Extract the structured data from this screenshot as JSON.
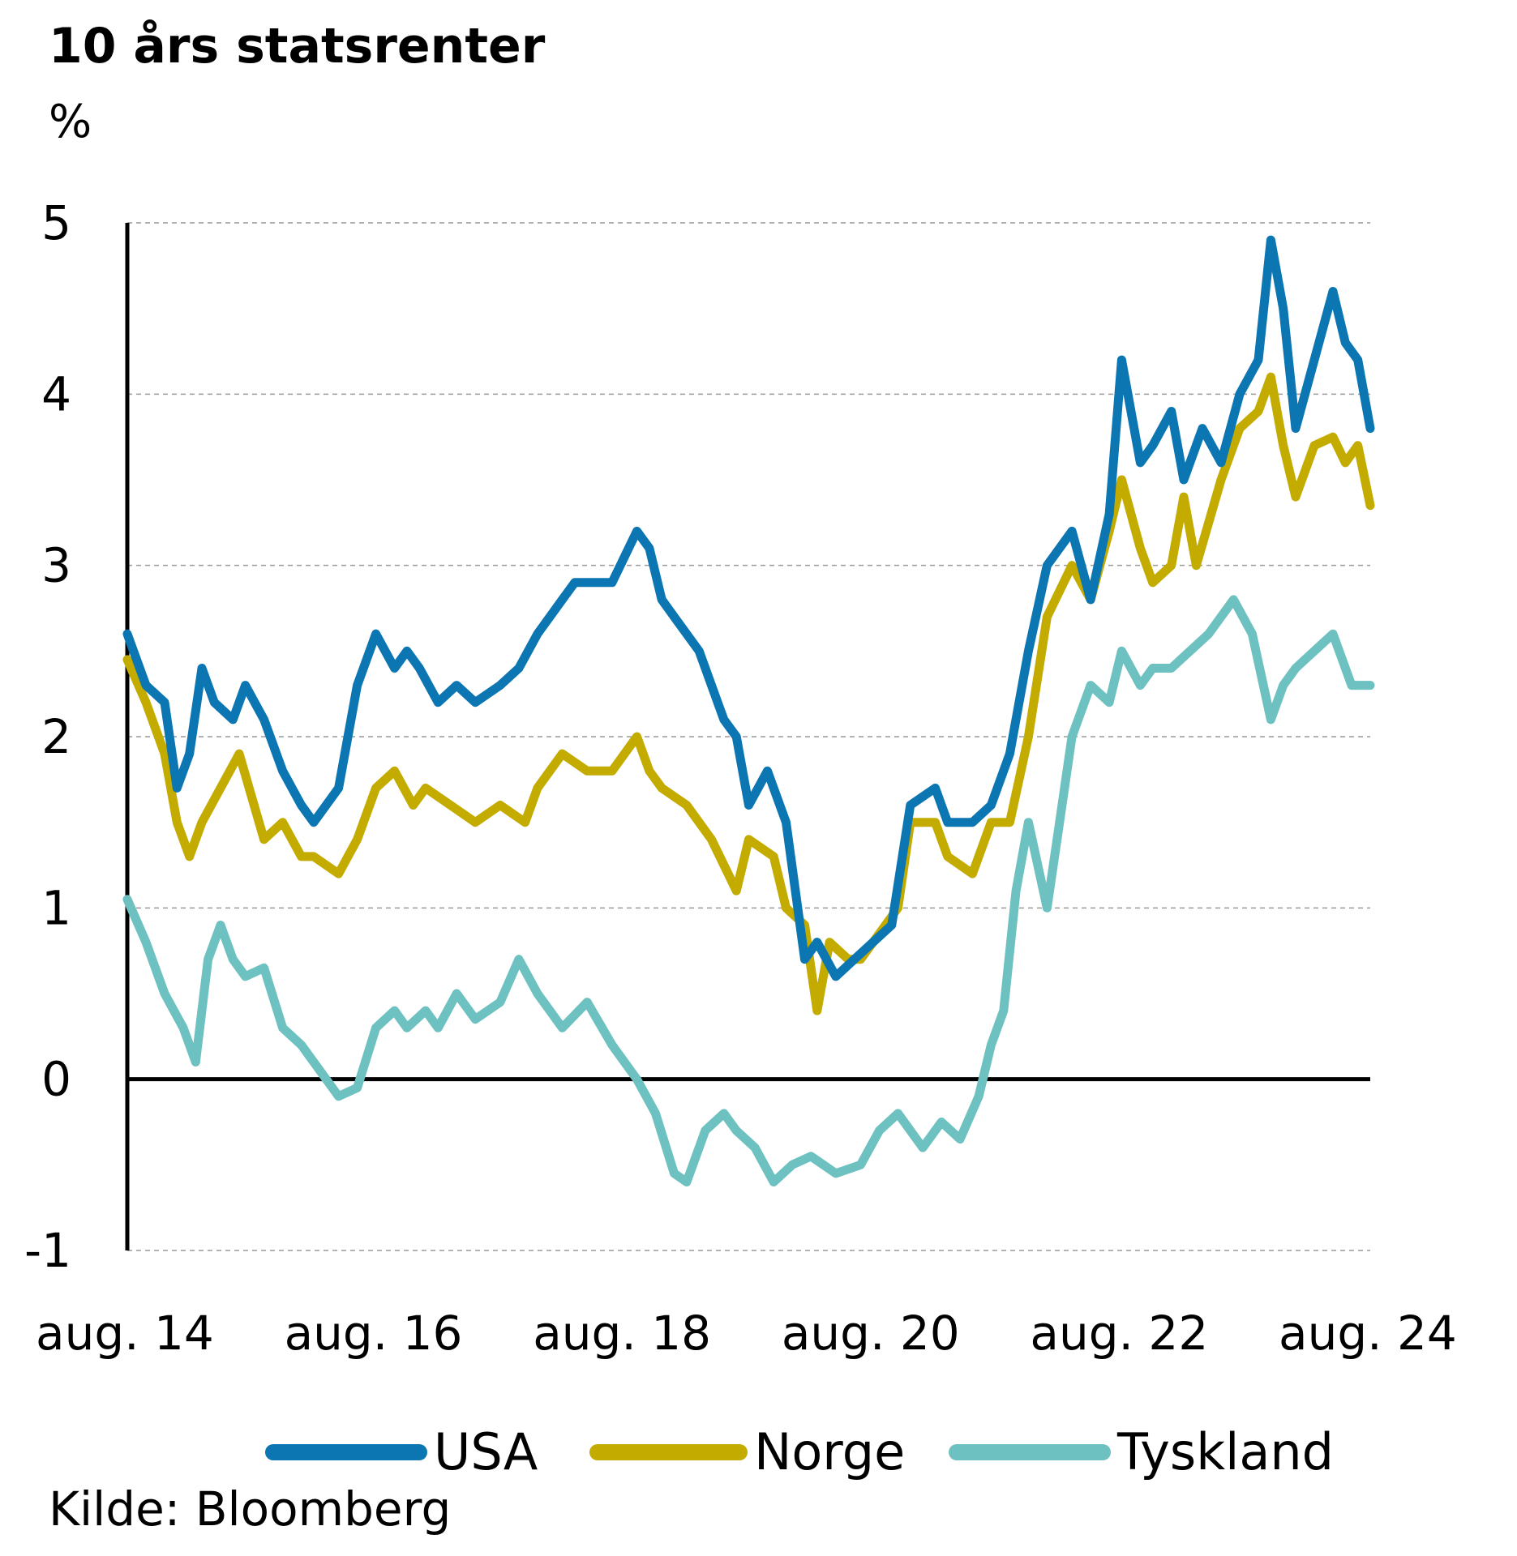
{
  "chart_data": {
    "type": "line",
    "title": "10 års statsrenter",
    "unit": "%",
    "source": "Kilde: Bloomberg",
    "x_tick_labels": [
      "aug. 14",
      "aug. 16",
      "aug. 18",
      "aug. 20",
      "aug. 22",
      "aug. 24"
    ],
    "x_tick_years": [
      2014.58,
      2016.58,
      2018.58,
      2020.58,
      2022.58,
      2024.58
    ],
    "xlim": [
      2014.6,
      2024.6
    ],
    "ylim": [
      -1,
      5
    ],
    "y_ticks": [
      -1,
      0,
      1,
      2,
      3,
      4,
      5
    ],
    "grid": true,
    "legend_position": "bottom",
    "series": [
      {
        "name": "USA",
        "color": "#0c76b2",
        "x": [
          2014.6,
          2014.75,
          2014.9,
          2015.0,
          2015.1,
          2015.2,
          2015.3,
          2015.45,
          2015.55,
          2015.7,
          2015.85,
          2016.0,
          2016.1,
          2016.3,
          2016.45,
          2016.6,
          2016.75,
          2016.85,
          2016.95,
          2017.1,
          2017.25,
          2017.4,
          2017.6,
          2017.75,
          2017.9,
          2018.1,
          2018.2,
          2018.35,
          2018.5,
          2018.7,
          2018.8,
          2018.9,
          2019.0,
          2019.2,
          2019.4,
          2019.5,
          2019.6,
          2019.75,
          2019.9,
          2020.05,
          2020.15,
          2020.3,
          2020.45,
          2020.6,
          2020.75,
          2020.9,
          2021.1,
          2021.2,
          2021.4,
          2021.55,
          2021.7,
          2021.85,
          2022.0,
          2022.2,
          2022.35,
          2022.5,
          2022.6,
          2022.75,
          2022.85,
          2023.0,
          2023.1,
          2023.25,
          2023.4,
          2023.55,
          2023.7,
          2023.8,
          2023.9,
          2024.0,
          2024.15,
          2024.3,
          2024.4,
          2024.5,
          2024.6
        ],
        "y": [
          2.6,
          2.3,
          2.2,
          1.7,
          1.9,
          2.4,
          2.2,
          2.1,
          2.3,
          2.1,
          1.8,
          1.6,
          1.5,
          1.7,
          2.3,
          2.6,
          2.4,
          2.5,
          2.4,
          2.2,
          2.3,
          2.2,
          2.3,
          2.4,
          2.6,
          2.8,
          2.9,
          2.9,
          2.9,
          3.2,
          3.1,
          2.8,
          2.7,
          2.5,
          2.1,
          2.0,
          1.6,
          1.8,
          1.5,
          0.7,
          0.8,
          0.6,
          0.7,
          0.8,
          0.9,
          1.6,
          1.7,
          1.5,
          1.5,
          1.6,
          1.9,
          2.5,
          3.0,
          3.2,
          2.8,
          3.3,
          4.2,
          3.6,
          3.7,
          3.9,
          3.5,
          3.8,
          3.6,
          4.0,
          4.2,
          4.9,
          4.5,
          3.8,
          4.2,
          4.6,
          4.3,
          4.2,
          3.8
        ]
      },
      {
        "name": "Norge",
        "color": "#c3ab00",
        "x": [
          2014.6,
          2014.75,
          2014.9,
          2015.0,
          2015.1,
          2015.2,
          2015.35,
          2015.5,
          2015.7,
          2015.85,
          2016.0,
          2016.1,
          2016.3,
          2016.45,
          2016.6,
          2016.75,
          2016.9,
          2017.0,
          2017.2,
          2017.4,
          2017.6,
          2017.8,
          2017.9,
          2018.1,
          2018.3,
          2018.5,
          2018.7,
          2018.8,
          2018.9,
          2019.1,
          2019.3,
          2019.5,
          2019.6,
          2019.8,
          2019.9,
          2020.05,
          2020.15,
          2020.25,
          2020.4,
          2020.5,
          2020.6,
          2020.7,
          2020.8,
          2020.9,
          2021.1,
          2021.2,
          2021.4,
          2021.55,
          2021.7,
          2021.85,
          2022.0,
          2022.2,
          2022.35,
          2022.5,
          2022.6,
          2022.75,
          2022.85,
          2023.0,
          2023.1,
          2023.2,
          2023.4,
          2023.55,
          2023.7,
          2023.8,
          2023.9,
          2024.0,
          2024.15,
          2024.3,
          2024.4,
          2024.5,
          2024.6
        ],
        "y": [
          2.45,
          2.2,
          1.9,
          1.5,
          1.3,
          1.5,
          1.7,
          1.9,
          1.4,
          1.5,
          1.3,
          1.3,
          1.2,
          1.4,
          1.7,
          1.8,
          1.6,
          1.7,
          1.6,
          1.5,
          1.6,
          1.5,
          1.7,
          1.9,
          1.8,
          1.8,
          2.0,
          1.8,
          1.7,
          1.6,
          1.4,
          1.1,
          1.4,
          1.3,
          1.0,
          0.9,
          0.4,
          0.8,
          0.7,
          0.7,
          0.8,
          0.9,
          1.0,
          1.5,
          1.5,
          1.3,
          1.2,
          1.5,
          1.5,
          2.0,
          2.7,
          3.0,
          2.8,
          3.2,
          3.5,
          3.1,
          2.9,
          3.0,
          3.4,
          3.0,
          3.5,
          3.8,
          3.9,
          4.1,
          3.7,
          3.4,
          3.7,
          3.75,
          3.6,
          3.7,
          3.35
        ]
      },
      {
        "name": "Tyskland",
        "color": "#6dc1c0",
        "x": [
          2014.6,
          2014.75,
          2014.9,
          2015.05,
          2015.15,
          2015.25,
          2015.35,
          2015.45,
          2015.55,
          2015.7,
          2015.85,
          2016.0,
          2016.1,
          2016.3,
          2016.45,
          2016.6,
          2016.75,
          2016.85,
          2017.0,
          2017.1,
          2017.25,
          2017.4,
          2017.6,
          2017.75,
          2017.9,
          2018.0,
          2018.1,
          2018.3,
          2018.5,
          2018.7,
          2018.85,
          2019.0,
          2019.1,
          2019.25,
          2019.4,
          2019.5,
          2019.65,
          2019.8,
          2019.95,
          2020.1,
          2020.2,
          2020.3,
          2020.5,
          2020.65,
          2020.8,
          2021.0,
          2021.15,
          2021.3,
          2021.45,
          2021.55,
          2021.65,
          2021.75,
          2021.85,
          2022.0,
          2022.1,
          2022.2,
          2022.35,
          2022.5,
          2022.6,
          2022.75,
          2022.85,
          2023.0,
          2023.15,
          2023.3,
          2023.5,
          2023.65,
          2023.8,
          2023.9,
          2024.0,
          2024.15,
          2024.3,
          2024.45,
          2024.6
        ],
        "y": [
          1.05,
          0.8,
          0.5,
          0.3,
          0.1,
          0.7,
          0.9,
          0.7,
          0.6,
          0.65,
          0.3,
          0.2,
          0.1,
          -0.1,
          -0.05,
          0.3,
          0.4,
          0.3,
          0.4,
          0.3,
          0.5,
          0.35,
          0.45,
          0.7,
          0.5,
          0.4,
          0.3,
          0.45,
          0.2,
          0.0,
          -0.2,
          -0.55,
          -0.6,
          -0.3,
          -0.2,
          -0.3,
          -0.4,
          -0.6,
          -0.5,
          -0.45,
          -0.5,
          -0.55,
          -0.5,
          -0.3,
          -0.2,
          -0.4,
          -0.25,
          -0.35,
          -0.1,
          0.2,
          0.4,
          1.1,
          1.5,
          1.0,
          1.5,
          2.0,
          2.3,
          2.2,
          2.5,
          2.3,
          2.4,
          2.4,
          2.5,
          2.6,
          2.8,
          2.6,
          2.1,
          2.3,
          2.4,
          2.5,
          2.6,
          2.3,
          2.3
        ]
      }
    ]
  }
}
